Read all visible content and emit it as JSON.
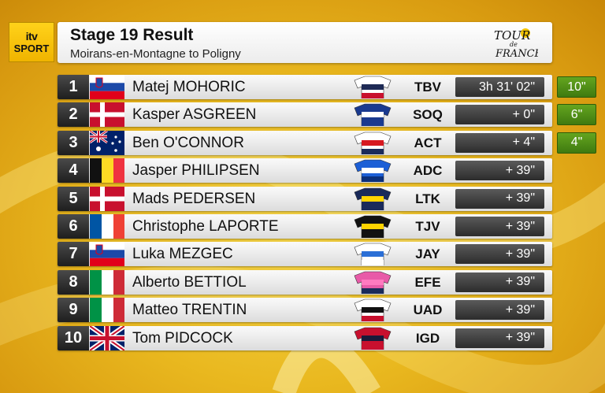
{
  "logo": {
    "line1": "itv",
    "line2": "SPORT"
  },
  "header": {
    "title": "Stage 19 Result",
    "subtitle": "Moirans-en-Montagne to Poligny",
    "race_logo_line1": "TOUR",
    "race_logo_de": "de",
    "race_logo_line2": "FRANCE"
  },
  "rows": [
    {
      "pos": "1",
      "name": "Matej MOHORIC",
      "flag": "SI",
      "team": "TBV",
      "time": "3h 31' 02\"",
      "bonus": "10\"",
      "jersey": [
        "#ffffff",
        "#1e2a55",
        "#c8102e"
      ]
    },
    {
      "pos": "2",
      "name": "Kasper ASGREEN",
      "flag": "DK",
      "team": "SOQ",
      "time": "+ 0\"",
      "bonus": "6\"",
      "jersey": [
        "#1a3a8f",
        "#ffffff",
        "#1a3a8f"
      ]
    },
    {
      "pos": "3",
      "name": "Ben O'CONNOR",
      "flag": "AU",
      "team": "ACT",
      "time": "+ 4\"",
      "bonus": "4\"",
      "jersey": [
        "#ffffff",
        "#d71920",
        "#1a2a5a"
      ]
    },
    {
      "pos": "4",
      "name": "Jasper  PHILIPSEN",
      "flag": "BE",
      "team": "ADC",
      "time": "+ 39\"",
      "bonus": "",
      "jersey": [
        "#1c5fd6",
        "#ffffff",
        "#0b2f7a"
      ]
    },
    {
      "pos": "5",
      "name": "Mads PEDERSEN",
      "flag": "DK",
      "team": "LTK",
      "time": "+ 39\"",
      "bonus": "",
      "jersey": [
        "#1a2a5a",
        "#ffd400",
        "#1a2a5a"
      ]
    },
    {
      "pos": "6",
      "name": "Christophe LAPORTE",
      "flag": "FR",
      "team": "TJV",
      "time": "+ 39\"",
      "bonus": "",
      "jersey": [
        "#111111",
        "#ffd400",
        "#111111"
      ]
    },
    {
      "pos": "7",
      "name": "Luka  MEZGEC",
      "flag": "SI",
      "team": "JAY",
      "time": "+ 39\"",
      "bonus": "",
      "jersey": [
        "#ffffff",
        "#2b6fd6",
        "#ffffff"
      ]
    },
    {
      "pos": "8",
      "name": "Alberto  BETTIOL",
      "flag": "IT",
      "team": "EFE",
      "time": "+ 39\"",
      "bonus": "",
      "jersey": [
        "#e85aa8",
        "#ff7ac0",
        "#1a2a5a"
      ]
    },
    {
      "pos": "9",
      "name": "Matteo TRENTIN",
      "flag": "IT",
      "team": "UAD",
      "time": "+ 39\"",
      "bonus": "",
      "jersey": [
        "#ffffff",
        "#111111",
        "#c8102e"
      ]
    },
    {
      "pos": "10",
      "name": "Tom  PIDCOCK",
      "flag": "GB",
      "team": "IGD",
      "time": "+ 39\"",
      "bonus": "",
      "jersey": [
        "#c8102e",
        "#1a1a3a",
        "#c8102e"
      ]
    }
  ]
}
